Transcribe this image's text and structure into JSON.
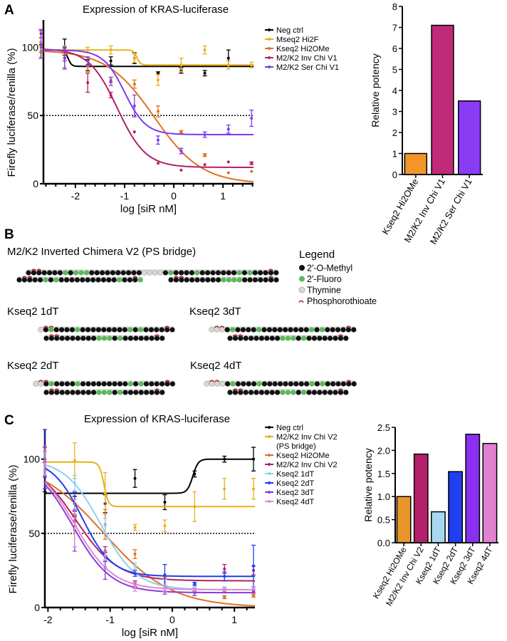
{
  "panel_labels": {
    "a": "A",
    "b": "B",
    "c": "C"
  },
  "chart_data": [
    {
      "id": "A-dose",
      "type": "line",
      "title": "Expression of KRAS-luciferase",
      "xlabel": "log [siR nM]",
      "ylabel": "Firefly luciferase/renilla (%)",
      "xlim": [
        -2.65,
        1.62
      ],
      "ylim": [
        0,
        120
      ],
      "xticks": [
        -2,
        -1,
        0,
        1
      ],
      "yticks": [
        0,
        50,
        100
      ],
      "reference_line": 50,
      "legend_position": "right",
      "x": [
        -2.7,
        -2.22,
        -1.75,
        -1.28,
        -0.8,
        -0.32,
        0.15,
        0.63,
        1.11,
        1.58
      ],
      "series": [
        {
          "name": "Neg ctrl",
          "color": "#000000",
          "values": [
            97,
            100,
            87,
            90,
            92,
            81,
            83,
            81,
            92,
            null
          ],
          "err": [
            5,
            6,
            4,
            3,
            4,
            1,
            2,
            2,
            6,
            0
          ],
          "fit": {
            "top": 98,
            "bottom": 86,
            "logIC50": -2.15,
            "hill": 12
          }
        },
        {
          "name": "Mseq2 Hi2F",
          "color": "#e8b11e",
          "values": [
            97,
            98,
            98,
            98,
            92,
            76,
            87,
            98,
            87,
            87
          ],
          "err": [
            4,
            3,
            2,
            3,
            3,
            4,
            5,
            3,
            3,
            2
          ],
          "fit": {
            "top": 98,
            "bottom": 87,
            "logIC50": -0.75,
            "hill": 12
          }
        },
        {
          "name": "Kseq2 Hi2OMe",
          "color": "#e2711f",
          "values": [
            100,
            92,
            86,
            76,
            73,
            53,
            38,
            21,
            8,
            9
          ],
          "err": [
            4,
            7,
            4,
            2,
            3,
            4,
            1,
            1,
            0,
            0
          ],
          "fit": {
            "top": 98,
            "bottom": 0,
            "logIC50": -0.4,
            "hill": 0.9
          }
        },
        {
          "name": "M2/K2 Inv Chi V1",
          "color": "#b42069",
          "values": [
            110,
            92,
            74,
            65,
            38,
            15,
            10,
            14,
            16,
            15
          ],
          "err": [
            3,
            2,
            7,
            2,
            0,
            0,
            0,
            0,
            0,
            1
          ],
          "fit": {
            "top": 99,
            "bottom": 12,
            "logIC50": -1.15,
            "hill": 1.5
          }
        },
        {
          "name": "M2/K2 Ser Chi V1",
          "color": "#7b3cf0",
          "values": [
            102,
            92,
            90,
            75,
            57,
            32,
            24,
            36,
            40,
            48
          ],
          "err": [
            10,
            8,
            3,
            3,
            8,
            3,
            2,
            2,
            3,
            6
          ],
          "fit": {
            "top": 98,
            "bottom": 36,
            "logIC50": -1.0,
            "hill": 2.0
          }
        }
      ]
    },
    {
      "id": "A-potency",
      "type": "bar",
      "ylabel": "Relative potency",
      "ylim": [
        0,
        8
      ],
      "yticks": [
        0,
        1,
        2,
        3,
        4,
        5,
        6,
        7,
        8
      ],
      "categories": [
        "Kseq2 Hi2OMe",
        "M2/K2 Inv Chi V1",
        "M2/K2 Ser Chi V1"
      ],
      "values": [
        1.0,
        7.1,
        3.5
      ],
      "colors": [
        "#f0962a",
        "#c02a78",
        "#8a3cf5"
      ]
    },
    {
      "id": "C-dose",
      "type": "line",
      "title": "Expression of KRAS-luciferase",
      "xlabel": "log [siR nM]",
      "ylabel": "Firefly luciferase/renilla (%)",
      "xlim": [
        -2.05,
        1.33
      ],
      "ylim": [
        0,
        120
      ],
      "xticks": [
        -2,
        -1,
        0,
        1
      ],
      "yticks": [
        0,
        50,
        100
      ],
      "reference_line": 50,
      "legend_position": "right",
      "x": [
        -2.05,
        -1.57,
        -1.08,
        -0.6,
        -0.12,
        0.36,
        0.84,
        1.32
      ],
      "series": [
        {
          "name": "Neg ctrl",
          "color": "#000000",
          "values": [
            88,
            70,
            70,
            87,
            71,
            90,
            100,
            100
          ],
          "err": [
            10,
            5,
            6,
            6,
            5,
            2,
            2,
            8
          ],
          "fit": {
            "top": 77,
            "bottom": 100,
            "logIC50": 0.33,
            "hill": 10
          }
        },
        {
          "name": "M2/K2 Inv Chi V2 (PS bridge)",
          "color": "#e8b11e",
          "values": [
            99,
            99,
            77,
            54,
            55,
            68,
            80,
            80
          ],
          "err": [
            10,
            12,
            14,
            2,
            4,
            10,
            7,
            7
          ],
          "fit": {
            "top": 98,
            "bottom": 68,
            "logIC50": -1.1,
            "hill": 12
          }
        },
        {
          "name": "Kseq2 Hi2OMe",
          "color": "#e2711f",
          "values": [
            97,
            61,
            56,
            36,
            20,
            12,
            7,
            8
          ],
          "err": [
            8,
            2,
            10,
            3,
            1,
            1,
            1,
            1
          ],
          "fit": {
            "top": 100,
            "bottom": 0,
            "logIC50": -1.1,
            "hill": 0.8
          }
        },
        {
          "name": "M2/K2 Inv Chi V2",
          "color": "#b42069",
          "values": [
            100,
            58,
            38,
            16,
            14,
            12,
            26,
            25
          ],
          "err": [
            8,
            3,
            3,
            2,
            1,
            1,
            3,
            3
          ],
          "fit": {
            "top": 100,
            "bottom": 18,
            "logIC50": -1.55,
            "hill": 1.3
          }
        },
        {
          "name": "Kseq2 1dT",
          "color": "#8ecff0",
          "values": [
            100,
            84,
            55,
            28,
            17,
            15,
            13,
            12
          ],
          "err": [
            8,
            5,
            5,
            2,
            2,
            1,
            1,
            1
          ],
          "fit": {
            "top": 100,
            "bottom": 12,
            "logIC50": -1.15,
            "hill": 1.5
          }
        },
        {
          "name": "Kseq2 2dT",
          "color": "#1f3ff0",
          "values": [
            100,
            70,
            34,
            23,
            22,
            16,
            21,
            28
          ],
          "err": [
            20,
            8,
            3,
            2,
            7,
            1,
            3,
            14
          ],
          "fit": {
            "top": 100,
            "bottom": 21,
            "logIC50": -1.45,
            "hill": 1.8
          }
        },
        {
          "name": "Kseq2 3dT",
          "color": "#8a3be0",
          "values": [
            98,
            52,
            27,
            15,
            11,
            10,
            11,
            11
          ],
          "err": [
            10,
            14,
            8,
            2,
            2,
            2,
            1,
            1
          ],
          "fit": {
            "top": 100,
            "bottom": 10,
            "logIC50": -1.6,
            "hill": 1.4
          }
        },
        {
          "name": "Kseq2 4dT",
          "color": "#e08ad0",
          "values": [
            97,
            57,
            35,
            14,
            13,
            12,
            12,
            13
          ],
          "err": [
            8,
            16,
            3,
            3,
            2,
            1,
            1,
            1
          ],
          "fit": {
            "top": 100,
            "bottom": 12,
            "logIC50": -1.57,
            "hill": 1.4
          }
        }
      ]
    },
    {
      "id": "C-potency",
      "type": "bar",
      "ylabel": "Relative potency",
      "ylim": [
        0,
        2.5
      ],
      "yticks": [
        "0.0",
        "0.5",
        "1.0",
        "1.5",
        "2.0",
        "2.5"
      ],
      "categories": [
        "Kseq2 Hi2OMe",
        "M2/K2 Inv Chi V2",
        "Kseq2 1dT",
        "Kseq2 2dT",
        "Kseq2 3dT",
        "Kseq2 4dT"
      ],
      "values": [
        1.0,
        1.92,
        0.67,
        1.54,
        2.35,
        2.15
      ],
      "colors": [
        "#e8962a",
        "#b5206a",
        "#a8d8f0",
        "#2040f0",
        "#8a30f0",
        "#e080d0"
      ]
    }
  ],
  "diagram": {
    "legend_title": "Legend",
    "legend": [
      {
        "key": "M",
        "label": "2′-O-Methyl",
        "color": "#111111"
      },
      {
        "key": "F",
        "label": "2′-Fluoro",
        "color": "#5cb85c"
      },
      {
        "key": "T",
        "label": "Thymine",
        "color": "#d8d8d8"
      },
      {
        "key": "PS",
        "label": "Phosphorothioate",
        "color": "#b01818"
      }
    ],
    "constructs": [
      {
        "title": "M2/K2 Inverted Chimera V2 (PS bridge)",
        "upper": "MMMMMMMFMFFFMMMMMMMMMMTTTTMFMMMMFMMMMMMMFMFMMMMM",
        "lower": "MMMMMFMFMMMMMMMMMMMFMMMFMMMMMMMMMMFFFFMMMMMMM"
      },
      {
        "title": "Kseq2 1dT",
        "upper": "TMFMMMMFMMMMMMMMMFMFMMMMMM",
        "lower": "MMMMMMMMMMFFFMFMMMMMMMM"
      },
      {
        "title": "Kseq2 3dT",
        "upper": "TTTMFMMMMFMMMMMMMMMFMFMMMMMM",
        "lower": "MMMMMMMMMMFFFMFMMMMMMMM"
      },
      {
        "title": "Kseq2 2dT",
        "upper": "TTMFMMMMFMMMMMMMMMFMFMMMMMM",
        "lower": "MMMMMMMMMMFFFMFMMMMMMMM"
      },
      {
        "title": "Kseq2 4dT",
        "upper": "TTTTMFMMMMFMMMMMMMMMFMFMMMMMM",
        "lower": "MMMMMMMMMMFFFMFMMMMMMMM"
      }
    ]
  }
}
